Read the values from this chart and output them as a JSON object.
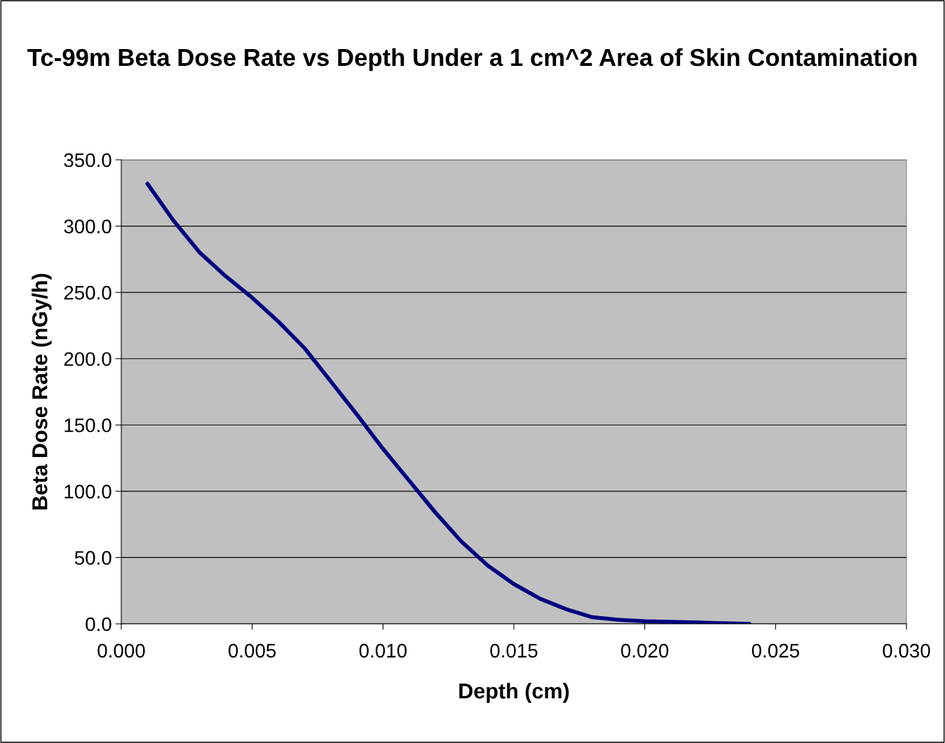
{
  "chart_data": {
    "type": "line",
    "title": "Tc-99m Beta Dose Rate vs Depth Under a 1 cm^2 Area of Skin Contamination",
    "xlabel": "Depth (cm)",
    "ylabel": "Beta Dose Rate (nGy/h)",
    "series": [
      {
        "color": "#000080",
        "x": [
          0.001,
          0.002,
          0.003,
          0.004,
          0.005,
          0.006,
          0.007,
          0.008,
          0.009,
          0.01,
          0.011,
          0.012,
          0.013,
          0.014,
          0.015,
          0.016,
          0.017,
          0.018,
          0.019,
          0.02,
          0.022,
          0.024
        ],
        "values": [
          332,
          304,
          280,
          262,
          246,
          228,
          208,
          183,
          158,
          132,
          108,
          84,
          62,
          44,
          30,
          19,
          11,
          5,
          3,
          2,
          1,
          0
        ]
      }
    ],
    "xlim": [
      0.0,
      0.03
    ],
    "xticks": [
      {
        "value": 0.0,
        "label": "0.000"
      },
      {
        "value": 0.005,
        "label": "0.005"
      },
      {
        "value": 0.01,
        "label": "0.010"
      },
      {
        "value": 0.015,
        "label": "0.015"
      },
      {
        "value": 0.02,
        "label": "0.020"
      },
      {
        "value": 0.025,
        "label": "0.025"
      },
      {
        "value": 0.03,
        "label": "0.030"
      }
    ],
    "ylim": [
      0,
      350
    ],
    "yticks": [
      {
        "value": 0,
        "label": "0.0"
      },
      {
        "value": 50,
        "label": "50.0"
      },
      {
        "value": 100,
        "label": "100.0"
      },
      {
        "value": 150,
        "label": "150.0"
      },
      {
        "value": 200,
        "label": "200.0"
      },
      {
        "value": 250,
        "label": "250.0"
      },
      {
        "value": 300,
        "label": "300.0"
      },
      {
        "value": 350,
        "label": "350.0"
      }
    ],
    "grid": "y",
    "marker": "none",
    "line_style": "solid"
  }
}
